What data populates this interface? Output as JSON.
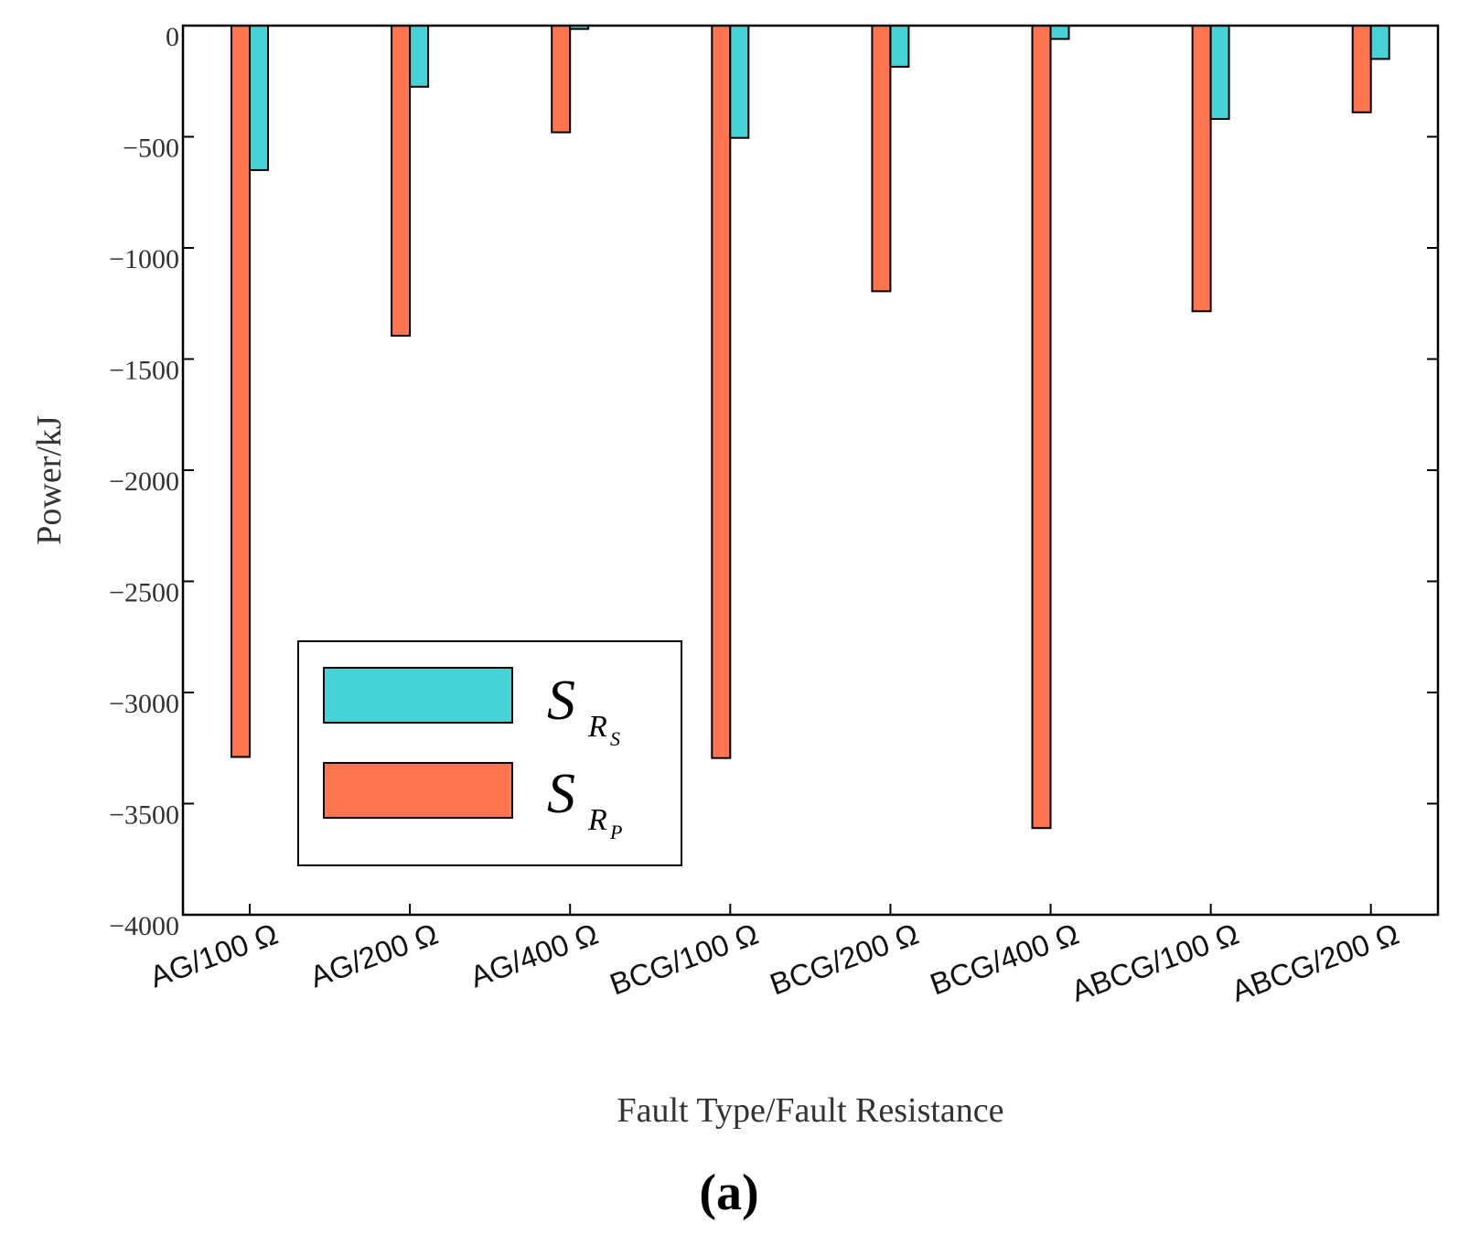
{
  "chart_data": {
    "type": "bar",
    "panel_label": "(a)",
    "xlabel": "Fault Type/Fault Resistance",
    "ylabel": "Power/kJ",
    "ylim": [
      -4000,
      0
    ],
    "yticks": [
      0,
      -500,
      -1000,
      -1500,
      -2000,
      -2500,
      -3000,
      -3500,
      -4000
    ],
    "ytick_labels": [
      "0",
      "−500",
      "−1000",
      "−1500",
      "−2000",
      "−2500",
      "−3000",
      "−3500",
      "−4000"
    ],
    "categories": [
      "AG/100 Ω",
      "AG/200 Ω",
      "AG/400 Ω",
      "BCG/100 Ω",
      "BCG/200 Ω",
      "BCG/400 Ω",
      "ABCG/100 Ω",
      "ABCG/200 Ω"
    ],
    "series": [
      {
        "name": "S_RP",
        "legend_main": "S",
        "legend_sub": "R",
        "legend_subsub": "P",
        "color": "#ff7550",
        "values": [
          -3290,
          -1395,
          -480,
          -3295,
          -1195,
          -3610,
          -1285,
          -390
        ]
      },
      {
        "name": "S_RS",
        "legend_main": "S",
        "legend_sub": "R",
        "legend_subsub": "S",
        "color": "#46d3d8",
        "values": [
          -650,
          -275,
          -15,
          -505,
          -185,
          -60,
          -420,
          -150
        ]
      }
    ],
    "legend_order": [
      1,
      0
    ],
    "legend_position": "lower-left",
    "grid": false
  }
}
